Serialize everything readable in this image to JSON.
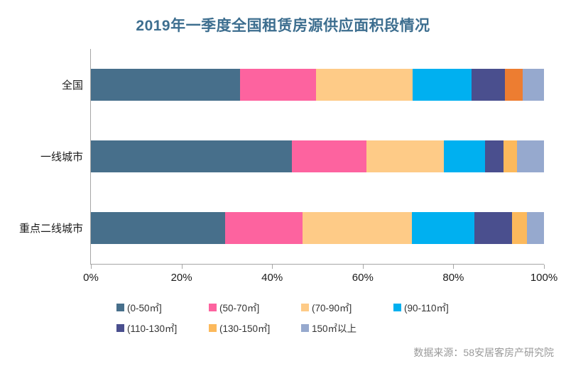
{
  "title": "2019年一季度全国租赁房源供应面积段情况",
  "source": "数据来源：58安居客房产研究院",
  "colors": {
    "title_text": "#3D6E8F",
    "axis_line": "#A6A6A6",
    "tick_label": "#1A1A1A",
    "category_label": "#1A1A1A",
    "legend_text": "#333333",
    "source_text": "#999999",
    "background": "#FFFFFF"
  },
  "chart_data": {
    "type": "bar",
    "orientation": "horizontal",
    "stacked": true,
    "title": "2019年一季度全国租赁房源供应面积段情况",
    "categories": [
      "全国",
      "一线城市",
      "重点二线城市"
    ],
    "series": [
      {
        "name": "(0-50㎡]",
        "color": "#476F8B",
        "values": [
          32.9,
          44.4,
          29.6
        ]
      },
      {
        "name": "(50-70㎡]",
        "color": "#FD639F",
        "values": [
          16.8,
          16.5,
          17.1
        ]
      },
      {
        "name": "(70-90㎡]",
        "color": "#FECB87",
        "values": [
          21.3,
          17.1,
          24.1
        ]
      },
      {
        "name": "(90-110㎡]",
        "color": "#00B0F0",
        "values": [
          13.0,
          9.1,
          13.9
        ]
      },
      {
        "name": "(110-130㎡]",
        "color": "#4A4F8E",
        "values": [
          7.4,
          4.1,
          8.2
        ]
      },
      {
        "name": "(130-150㎡]",
        "color": "#FCB95C",
        "values": [
          3.9,
          3.0,
          3.3
        ],
        "per_category_colors": [
          "#ED7D31",
          "#FCB95C",
          "#FCB95C"
        ]
      },
      {
        "name": "150㎡以上",
        "color": "#96A9CE",
        "values": [
          4.7,
          6.0,
          3.8
        ]
      }
    ],
    "x_ticks": [
      "0%",
      "20%",
      "40%",
      "60%",
      "80%",
      "100%"
    ],
    "xlim": [
      0,
      100
    ],
    "grid": false,
    "legend_position": "bottom",
    "legend_rows": [
      [
        0,
        1,
        2,
        3
      ],
      [
        4,
        5,
        6
      ]
    ]
  }
}
